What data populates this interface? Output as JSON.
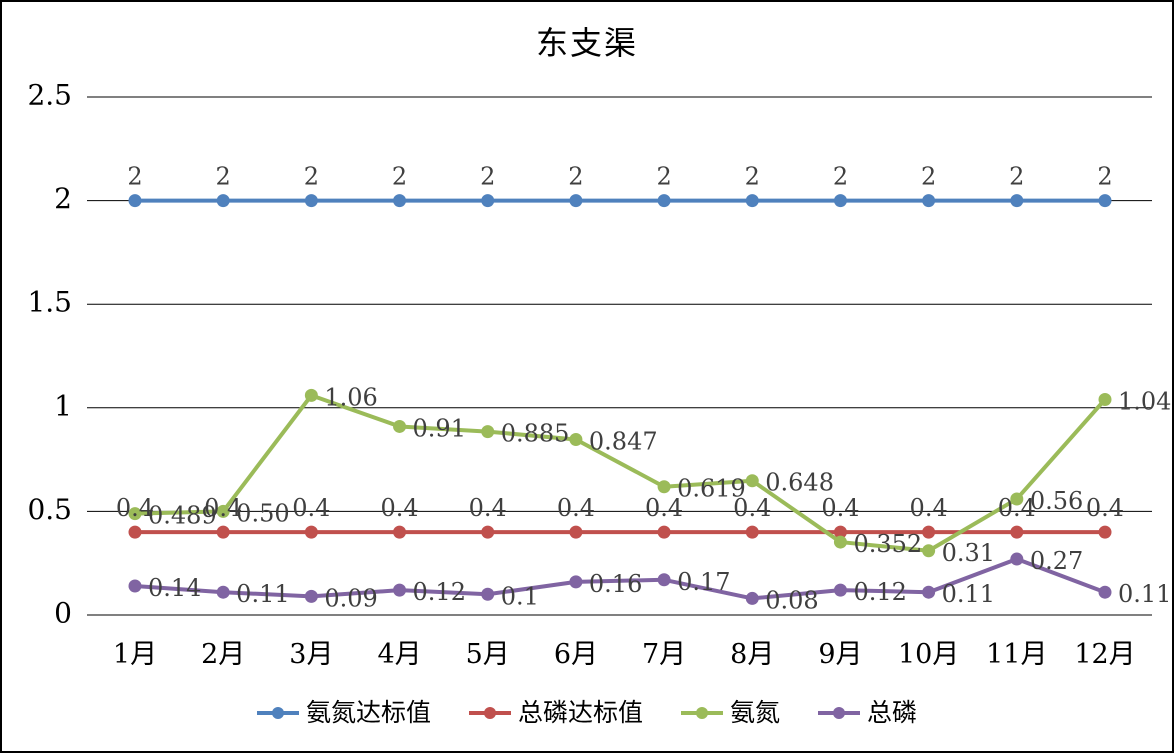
{
  "title": "东支渠",
  "chart_data": {
    "type": "line",
    "title": "东支渠",
    "categories": [
      "1月",
      "2月",
      "3月",
      "4月",
      "5月",
      "6月",
      "7月",
      "8月",
      "9月",
      "10月",
      "11月",
      "12月"
    ],
    "xlabel": "",
    "ylabel": "",
    "ylim": [
      0,
      2.5
    ],
    "yticks": [
      0,
      0.5,
      1,
      1.5,
      2,
      2.5
    ],
    "grid": true,
    "legend_position": "bottom",
    "label_color": "#3f3f3f",
    "grid_color": "#000000",
    "series": [
      {
        "id": "nh3n-limit",
        "name": "氨氮达标值",
        "color": "#4F81BD",
        "label_placement": "above",
        "values": [
          2,
          2,
          2,
          2,
          2,
          2,
          2,
          2,
          2,
          2,
          2,
          2
        ],
        "labels": [
          "2",
          "2",
          "2",
          "2",
          "2",
          "2",
          "2",
          "2",
          "2",
          "2",
          "2",
          "2"
        ]
      },
      {
        "id": "tp-limit",
        "name": "总磷达标值",
        "color": "#C0504D",
        "label_placement": "above",
        "values": [
          0.4,
          0.4,
          0.4,
          0.4,
          0.4,
          0.4,
          0.4,
          0.4,
          0.4,
          0.4,
          0.4,
          0.4
        ],
        "labels": [
          "0.4",
          "0.4",
          "0.4",
          "0.4",
          "0.4",
          "0.4",
          "0.4",
          "0.4",
          "0.4",
          "0.4",
          "0.4",
          "0.4"
        ]
      },
      {
        "id": "nh3n",
        "name": "氨氮",
        "color": "#9BBB59",
        "label_placement": "right",
        "values": [
          0.489,
          0.5,
          1.06,
          0.91,
          0.885,
          0.847,
          0.619,
          0.648,
          0.352,
          0.31,
          0.56,
          1.04
        ],
        "labels": [
          "0.489",
          "0.50",
          "1.06",
          "0.91",
          "0.885",
          "0.847",
          "0.619",
          "0.648",
          "0.352",
          "0.31",
          "0.56",
          "1.04"
        ]
      },
      {
        "id": "tp",
        "name": "总磷",
        "color": "#8064A2",
        "label_placement": "right",
        "values": [
          0.14,
          0.11,
          0.09,
          0.12,
          0.1,
          0.16,
          0.17,
          0.08,
          0.12,
          0.11,
          0.27,
          0.11
        ],
        "labels": [
          "0.14",
          "0.11",
          "0.09",
          "0.12",
          "0.1",
          "0.16",
          "0.17",
          "0.08",
          "0.12",
          "0.11",
          "0.27",
          "0.11"
        ]
      }
    ]
  }
}
